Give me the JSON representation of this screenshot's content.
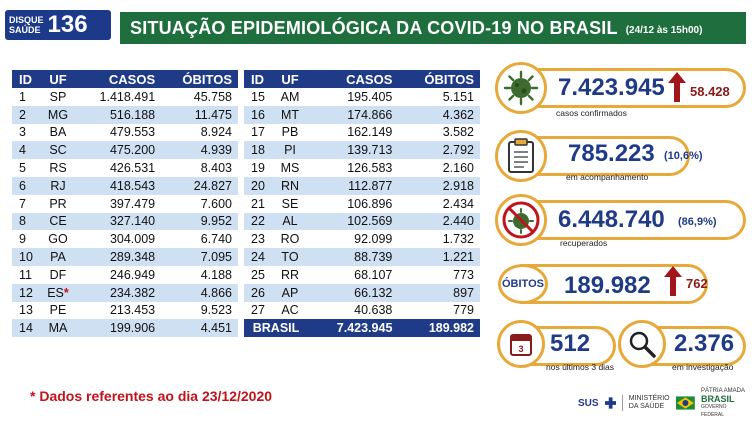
{
  "logo": {
    "line1": "DISQUE",
    "line2": "SAÚDE",
    "number": "136"
  },
  "header": {
    "title": "SITUAÇÃO EPIDEMIOLÓGICA DA COVID-19 NO BRASIL",
    "date": "(24/12 às 15h00)"
  },
  "columns": {
    "id": "ID",
    "uf": "UF",
    "casos": "CASOS",
    "obitos": "ÓBITOS"
  },
  "left_table": [
    [
      "1",
      "SP",
      "1.418.491",
      "45.758"
    ],
    [
      "2",
      "MG",
      "516.188",
      "11.475"
    ],
    [
      "3",
      "BA",
      "479.553",
      "8.924"
    ],
    [
      "4",
      "SC",
      "475.200",
      "4.939"
    ],
    [
      "5",
      "RS",
      "426.531",
      "8.403"
    ],
    [
      "6",
      "RJ",
      "418.543",
      "24.827"
    ],
    [
      "7",
      "PR",
      "397.479",
      "7.600"
    ],
    [
      "8",
      "CE",
      "327.140",
      "9.952"
    ],
    [
      "9",
      "GO",
      "304.009",
      "6.740"
    ],
    [
      "10",
      "PA",
      "289.348",
      "7.095"
    ],
    [
      "11",
      "DF",
      "246.949",
      "4.188"
    ],
    [
      "12",
      "ES",
      "234.382",
      "4.866"
    ],
    [
      "13",
      "PE",
      "213.453",
      "9.523"
    ],
    [
      "14",
      "MA",
      "199.906",
      "4.451"
    ]
  ],
  "es_marker": "*",
  "right_table": [
    [
      "15",
      "AM",
      "195.405",
      "5.151"
    ],
    [
      "16",
      "MT",
      "174.866",
      "4.362"
    ],
    [
      "17",
      "PB",
      "162.149",
      "3.582"
    ],
    [
      "18",
      "PI",
      "139.713",
      "2.792"
    ],
    [
      "19",
      "MS",
      "126.583",
      "2.160"
    ],
    [
      "20",
      "RN",
      "112.877",
      "2.918"
    ],
    [
      "21",
      "SE",
      "106.896",
      "2.434"
    ],
    [
      "22",
      "AL",
      "102.569",
      "2.440"
    ],
    [
      "23",
      "RO",
      "92.099",
      "1.732"
    ],
    [
      "24",
      "TO",
      "88.739",
      "1.221"
    ],
    [
      "25",
      "RR",
      "68.107",
      "773"
    ],
    [
      "26",
      "AP",
      "66.132",
      "897"
    ],
    [
      "27",
      "AC",
      "40.638",
      "779"
    ]
  ],
  "total": {
    "label": "BRASIL",
    "casos": "7.423.945",
    "obitos": "189.982"
  },
  "footnote": "* Dados referentes ao dia 23/12/2020",
  "stats": {
    "confirmados": {
      "value": "7.423.945",
      "delta": "58.428",
      "label": "casos confirmados"
    },
    "acompanhamento": {
      "value": "785.223",
      "pct": "(10,6%)",
      "label": "em acompanhamento"
    },
    "recuperados": {
      "value": "6.448.740",
      "pct": "(86,9%)",
      "label": "recuperados"
    },
    "obitos": {
      "badge": "ÓBITOS",
      "value": "189.982",
      "delta": "762"
    },
    "ultimos3": {
      "value": "512",
      "label": "nos últimos 3 dias"
    },
    "investigacao": {
      "value": "2.376",
      "label": "em investigação"
    }
  },
  "sponsors": {
    "sus": "SUS",
    "ministerio": "MINISTÉRIO DA SAÚDE",
    "patria": "PÁTRIA AMADA",
    "brasil": "BRASIL",
    "gov": "GOVERNO FEDERAL"
  },
  "colors": {
    "green": "#1f6e3e",
    "navy": "#1f3b87",
    "stripe": "#cfe0f3",
    "gold": "#e7a93a",
    "red": "#c0131c",
    "dark_red": "#8b1a1a"
  },
  "icons": [
    "virus-icon",
    "clipboard-icon",
    "crossed-virus-icon",
    "calendar-icon",
    "magnifier-icon",
    "arrow-up-icon"
  ]
}
